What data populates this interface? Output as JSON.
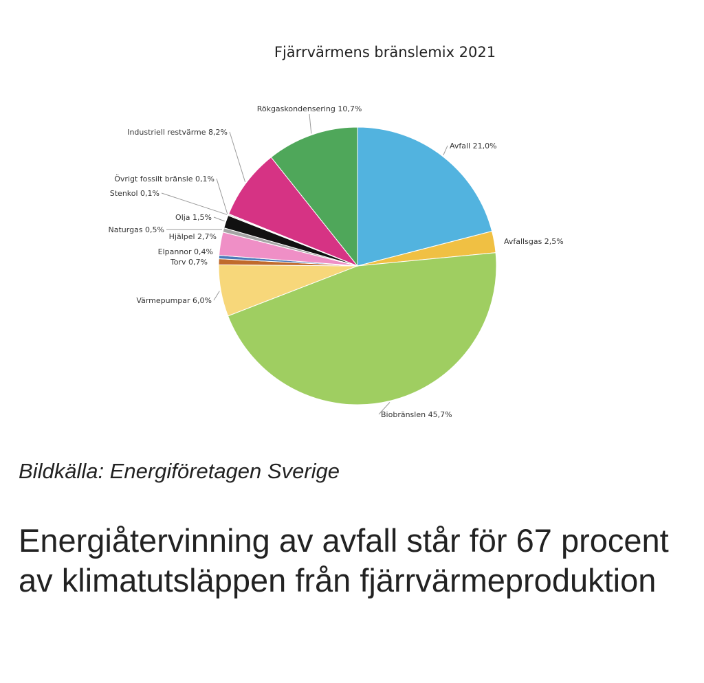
{
  "chart_data": {
    "type": "pie",
    "title": "Fjärrvärmens bränslemix 2021",
    "slices": [
      {
        "label": "Avfall 21,0%",
        "value": 21.0,
        "color": "#52b3df"
      },
      {
        "label": "Avfallsgas 2,5%",
        "value": 2.5,
        "color": "#f0c043"
      },
      {
        "label": "Biobränslen 45,7%",
        "value": 45.7,
        "color": "#9fce61"
      },
      {
        "label": "Värmepumpar 6,0%",
        "value": 6.0,
        "color": "#f7d77a"
      },
      {
        "label": "Torv 0,7%",
        "value": 0.7,
        "color": "#c06a2c"
      },
      {
        "label": "Elpannor 0,4%",
        "value": 0.4,
        "color": "#4b79b8"
      },
      {
        "label": "Hjälpel 2,7%",
        "value": 2.7,
        "color": "#ef8fc6"
      },
      {
        "label": "Naturgas 0,5%",
        "value": 0.5,
        "color": "#a5a5a5"
      },
      {
        "label": "Olja 1,5%",
        "value": 1.5,
        "color": "#111111"
      },
      {
        "label": "Stenkol 0,1%",
        "value": 0.1,
        "color": "#6b4f3a"
      },
      {
        "label": "Övrigt fossilt bränsle 0,1%",
        "value": 0.1,
        "color": "#8c8c8c"
      },
      {
        "label": "Industriell restvärme 8,2%",
        "value": 8.2,
        "color": "#d63384"
      },
      {
        "label": "Rökgaskondensering 10,7%",
        "value": 10.7,
        "color": "#4fa75a"
      }
    ]
  },
  "caption": "Bildkälla: Energiföretagen Sverige",
  "headline": "Energiåtervinning av avfall står för 67 procent av klimatutsläppen från fjärrvärmeproduktion"
}
